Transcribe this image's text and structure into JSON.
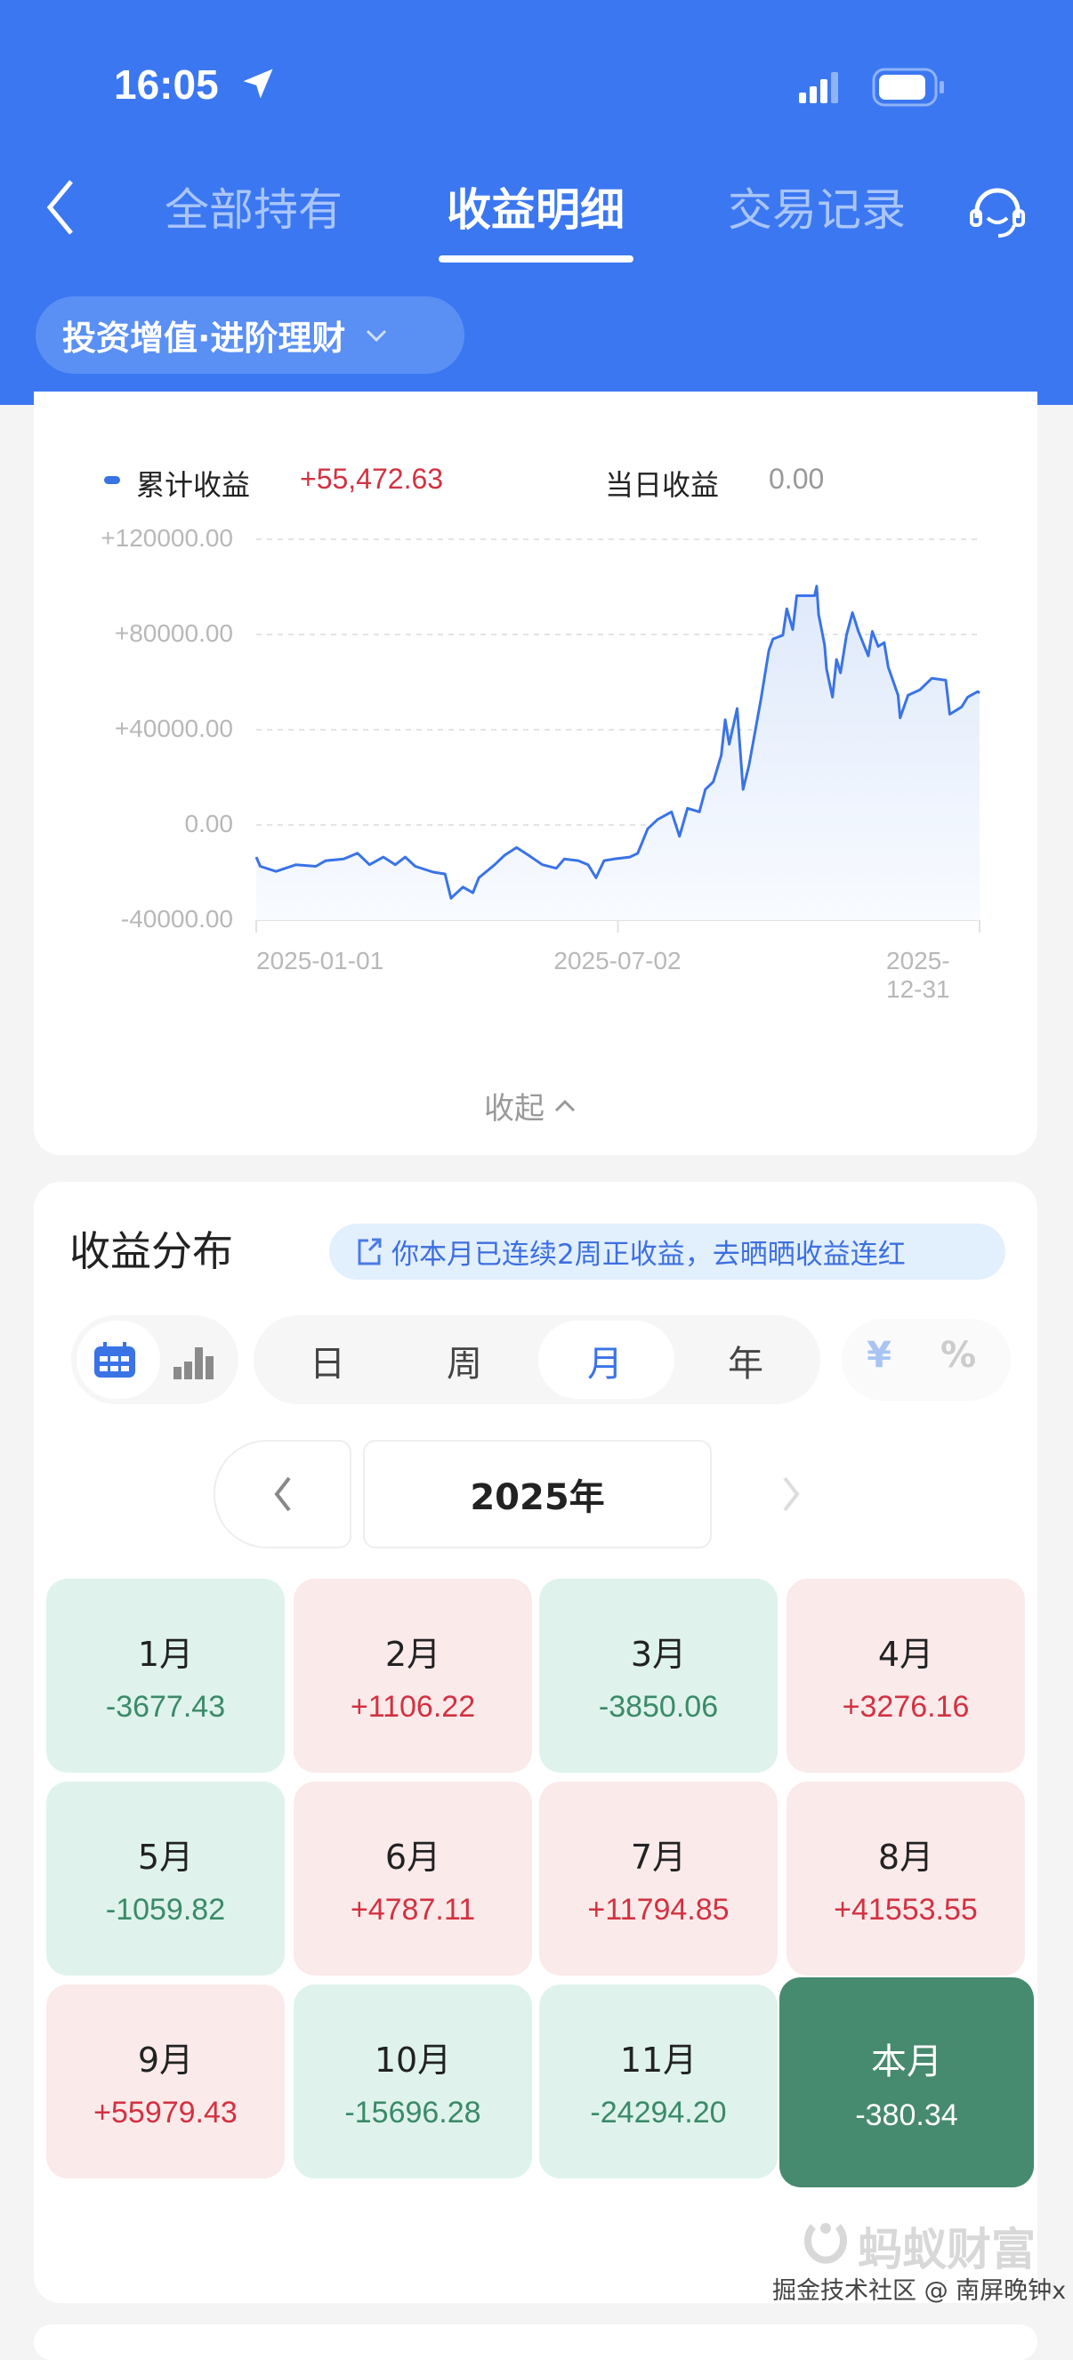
{
  "status_bar": {
    "time": "16:05"
  },
  "nav": {
    "tabs": [
      {
        "label": "全部持有"
      },
      {
        "label": "收益明细",
        "active": true
      },
      {
        "label": "交易记录"
      }
    ],
    "back_icon": "chevron-left-icon",
    "service_icon": "headset-icon"
  },
  "product_selector": {
    "label": "投资增值·进阶理财"
  },
  "summary": {
    "cumulative_label": "累计收益",
    "cumulative_value": "+55,472.63",
    "daily_label": "当日收益",
    "daily_value": "0.00",
    "collapse_label": "收起"
  },
  "chart_data": {
    "type": "area",
    "series": [
      {
        "name": "累计收益",
        "color": "#3a73e6",
        "points": [
          [
            "2025-01-01",
            -13500
          ],
          [
            "2025-01-03",
            -17400
          ],
          [
            "2025-01-11",
            -19500
          ],
          [
            "2025-01-21",
            -16700
          ],
          [
            "2025-01-31",
            -17400
          ],
          [
            "2025-02-05",
            -15000
          ],
          [
            "2025-02-14",
            -14300
          ],
          [
            "2025-02-21",
            -11900
          ],
          [
            "2025-02-27",
            -16700
          ],
          [
            "2025-03-06",
            -13500
          ],
          [
            "2025-03-12",
            -16700
          ],
          [
            "2025-03-17",
            -13500
          ],
          [
            "2025-03-22",
            -17400
          ],
          [
            "2025-03-31",
            -19800
          ],
          [
            "2025-04-06",
            -20600
          ],
          [
            "2025-04-09",
            -30800
          ],
          [
            "2025-04-15",
            -26100
          ],
          [
            "2025-04-20",
            -28500
          ],
          [
            "2025-04-23",
            -22200
          ],
          [
            "2025-05-01",
            -16700
          ],
          [
            "2025-05-06",
            -12700
          ],
          [
            "2025-05-12",
            -9500
          ],
          [
            "2025-05-18",
            -12700
          ],
          [
            "2025-05-25",
            -16700
          ],
          [
            "2025-06-01",
            -18200
          ],
          [
            "2025-06-05",
            -14300
          ],
          [
            "2025-06-12",
            -15000
          ],
          [
            "2025-06-17",
            -16700
          ],
          [
            "2025-06-21",
            -22200
          ],
          [
            "2025-06-25",
            -15000
          ],
          [
            "2025-06-30",
            -14300
          ],
          [
            "2025-07-08",
            -13500
          ],
          [
            "2025-07-12",
            -11900
          ],
          [
            "2025-07-17",
            -1600
          ],
          [
            "2025-07-22",
            2300
          ],
          [
            "2025-07-29",
            5500
          ],
          [
            "2025-08-02",
            -4800
          ],
          [
            "2025-08-06",
            7000
          ],
          [
            "2025-08-12",
            5500
          ],
          [
            "2025-08-15",
            14900
          ],
          [
            "2025-08-19",
            18100
          ],
          [
            "2025-08-23",
            29200
          ],
          [
            "2025-08-25",
            44200
          ],
          [
            "2025-08-27",
            33900
          ],
          [
            "2025-08-31",
            48900
          ],
          [
            "2025-09-03",
            14900
          ],
          [
            "2025-09-06",
            25200
          ],
          [
            "2025-09-12",
            52900
          ],
          [
            "2025-09-16",
            73400
          ],
          [
            "2025-09-18",
            78100
          ],
          [
            "2025-09-23",
            79700
          ],
          [
            "2025-09-25",
            90800
          ],
          [
            "2025-09-28",
            82100
          ],
          [
            "2025-09-30",
            96300
          ],
          [
            "2025-10-09",
            96300
          ],
          [
            "2025-10-10",
            100300
          ],
          [
            "2025-10-11",
            88400
          ],
          [
            "2025-10-14",
            75600
          ],
          [
            "2025-10-15",
            65500
          ],
          [
            "2025-10-18",
            53700
          ],
          [
            "2025-10-20",
            69500
          ],
          [
            "2025-10-22",
            63900
          ],
          [
            "2025-10-25",
            79700
          ],
          [
            "2025-10-28",
            89200
          ],
          [
            "2025-10-31",
            81300
          ],
          [
            "2025-11-05",
            71000
          ],
          [
            "2025-11-07",
            81300
          ],
          [
            "2025-11-10",
            75000
          ],
          [
            "2025-11-13",
            76600
          ],
          [
            "2025-11-15",
            66300
          ],
          [
            "2025-11-20",
            54500
          ],
          [
            "2025-11-21",
            45000
          ],
          [
            "2025-11-25",
            54500
          ],
          [
            "2025-12-01",
            56800
          ],
          [
            "2025-12-07",
            61600
          ],
          [
            "2025-12-14",
            60800
          ],
          [
            "2025-12-16",
            46500
          ],
          [
            "2025-12-22",
            49600
          ],
          [
            "2025-12-25",
            53700
          ],
          [
            "2025-12-30",
            56000
          ],
          [
            "2025-12-31",
            55472.63
          ]
        ]
      }
    ],
    "xlim": [
      "2025-01-01",
      "2025-12-31"
    ],
    "ylim": [
      -40000,
      120000
    ],
    "y_ticks": [
      "+120000.00",
      "+80000.00",
      "+40000.00",
      "0.00",
      "-40000.00"
    ],
    "y_tick_values": [
      120000,
      80000,
      40000,
      0,
      -40000
    ],
    "x_ticks": [
      "2025-01-01",
      "2025-07-02",
      "2025-12-31"
    ],
    "grid": "horizontal-dashed",
    "legend": "top-left"
  },
  "distribution": {
    "title": "收益分布",
    "banner": "你本月已连续2周正收益，去晒晒收益连红",
    "view_icons": [
      "calendar-icon",
      "bar-chart-icon"
    ],
    "periods": [
      "日",
      "周",
      "月",
      "年"
    ],
    "active_period": "月",
    "unit_toggle": [
      "¥",
      "%"
    ],
    "year": "2025年",
    "months": [
      {
        "label": "1月",
        "value": "-3677.43",
        "sign": "neg"
      },
      {
        "label": "2月",
        "value": "+1106.22",
        "sign": "pos"
      },
      {
        "label": "3月",
        "value": "-3850.06",
        "sign": "neg"
      },
      {
        "label": "4月",
        "value": "+3276.16",
        "sign": "pos"
      },
      {
        "label": "5月",
        "value": "-1059.82",
        "sign": "neg"
      },
      {
        "label": "6月",
        "value": "+4787.11",
        "sign": "pos"
      },
      {
        "label": "7月",
        "value": "+11794.85",
        "sign": "pos"
      },
      {
        "label": "8月",
        "value": "+41553.55",
        "sign": "pos"
      },
      {
        "label": "9月",
        "value": "+55979.43",
        "sign": "pos"
      },
      {
        "label": "10月",
        "value": "-15696.28",
        "sign": "neg"
      },
      {
        "label": "11月",
        "value": "-24294.20",
        "sign": "neg"
      },
      {
        "label": "本月",
        "value": "-380.34",
        "sign": "cur"
      }
    ]
  },
  "watermark": {
    "logo": "蚂蚁财富",
    "credit": "掘金技术社区 @ 南屏晚钟x"
  },
  "colors": {
    "brand": "#3b77f1",
    "positive": "#d23242",
    "negative": "#3b8a69",
    "current_month": "#468a6f"
  }
}
